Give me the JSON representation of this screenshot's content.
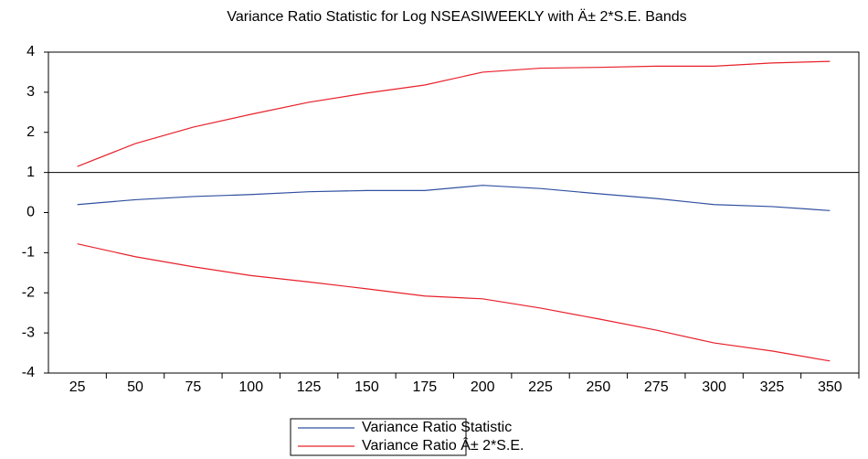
{
  "chart_data": {
    "type": "line",
    "title": "Variance Ratio Statistic for Log NSEASIWEEKLY with Ä± 2*S.E. Bands",
    "categories": [
      "25",
      "50",
      "75",
      "100",
      "125",
      "150",
      "175",
      "200",
      "225",
      "250",
      "275",
      "300",
      "325",
      "350"
    ],
    "series": [
      {
        "name": "Variance Ratio Statistic",
        "color": "#3050a0",
        "values": [
          0.2,
          0.32,
          0.4,
          0.45,
          0.52,
          0.55,
          0.55,
          0.68,
          0.6,
          0.47,
          0.35,
          0.2,
          0.15,
          0.05
        ]
      },
      {
        "name": "Variance Ratio Â± 2*S.E.",
        "color": "#e8202a",
        "values": [
          1.15,
          1.72,
          2.13,
          2.45,
          2.75,
          2.98,
          3.18,
          3.5,
          3.6,
          3.62,
          3.65,
          3.65,
          3.73,
          3.77
        ]
      },
      {
        "color": "#e8202a",
        "values": [
          -0.78,
          -1.1,
          -1.35,
          -1.57,
          -1.73,
          -1.9,
          -2.08,
          -2.15,
          -2.38,
          -2.65,
          -2.93,
          -3.25,
          -3.45,
          -3.7
        ]
      }
    ],
    "reference_line": 1,
    "ylim": [
      -4,
      4
    ],
    "yticks": [
      -4,
      -3,
      -2,
      -1,
      0,
      1,
      2,
      3,
      4
    ]
  }
}
